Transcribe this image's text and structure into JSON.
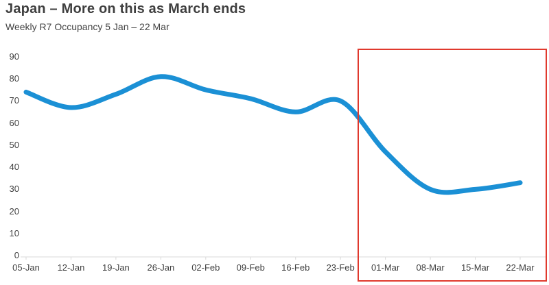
{
  "page": {
    "title": "Japan – More on this as March ends",
    "subtitle": "Weekly R7 Occupancy 5 Jan – 22 Mar"
  },
  "colors": {
    "line": "#1b90d5",
    "highlight_box": "#e0392d",
    "title_text": "#3f3f3f",
    "axis_text": "#404040",
    "axis_line": "#d9d9d9",
    "background": "#ffffff"
  },
  "chart_data": {
    "type": "line",
    "title": "Japan – More on this as March ends",
    "subtitle": "Weekly R7 Occupancy 5 Jan – 22 Mar",
    "categories": [
      "05-Jan",
      "12-Jan",
      "19-Jan",
      "26-Jan",
      "02-Feb",
      "09-Feb",
      "16-Feb",
      "23-Feb",
      "01-Mar",
      "08-Mar",
      "15-Mar",
      "22-Mar"
    ],
    "values": [
      74,
      67,
      73,
      81,
      75,
      71,
      65,
      70,
      47,
      30,
      30,
      33
    ],
    "ylim": [
      0,
      90
    ],
    "y_ticks": [
      0,
      10,
      20,
      30,
      40,
      50,
      60,
      70,
      80,
      90
    ],
    "xlabel": "",
    "ylabel": "",
    "grid": "off",
    "legend": "none",
    "smoothed": true,
    "line_width": 7,
    "annotations": [
      {
        "type": "rect",
        "label": "highlight-march",
        "x_start": "01-Mar",
        "x_end": "22-Mar",
        "color": "#e0392d"
      }
    ]
  }
}
